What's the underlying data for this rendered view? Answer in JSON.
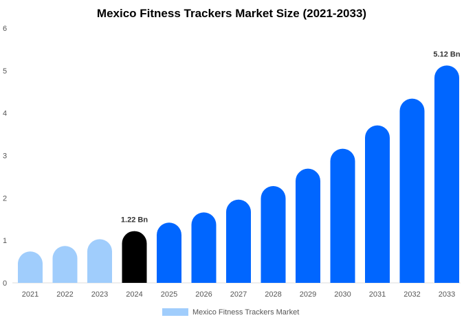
{
  "chart_data": {
    "type": "bar",
    "title": "Mexico Fitness Trackers Market Size (2021-2033)",
    "categories": [
      "2021",
      "2022",
      "2023",
      "2024",
      "2025",
      "2026",
      "2027",
      "2028",
      "2029",
      "2030",
      "2031",
      "2032",
      "2033"
    ],
    "series": [
      {
        "name": "Mexico Fitness Trackers Market",
        "values": [
          0.74,
          0.87,
          1.03,
          1.22,
          1.42,
          1.66,
          1.96,
          2.28,
          2.69,
          3.16,
          3.71,
          4.34,
          5.12
        ]
      }
    ],
    "data_labels": {
      "3": "1.22 Bn",
      "12": "5.12 Bn"
    },
    "ylim": [
      0,
      6
    ],
    "yticks": [
      "0",
      "1",
      "2",
      "3",
      "4",
      "5",
      "6"
    ],
    "xlabel": "",
    "ylabel": "",
    "grid": false,
    "legend": "bottom",
    "colors": {
      "historical": "#a0cdfc",
      "base_year": "#000000",
      "forecast": "#0066ff"
    }
  }
}
